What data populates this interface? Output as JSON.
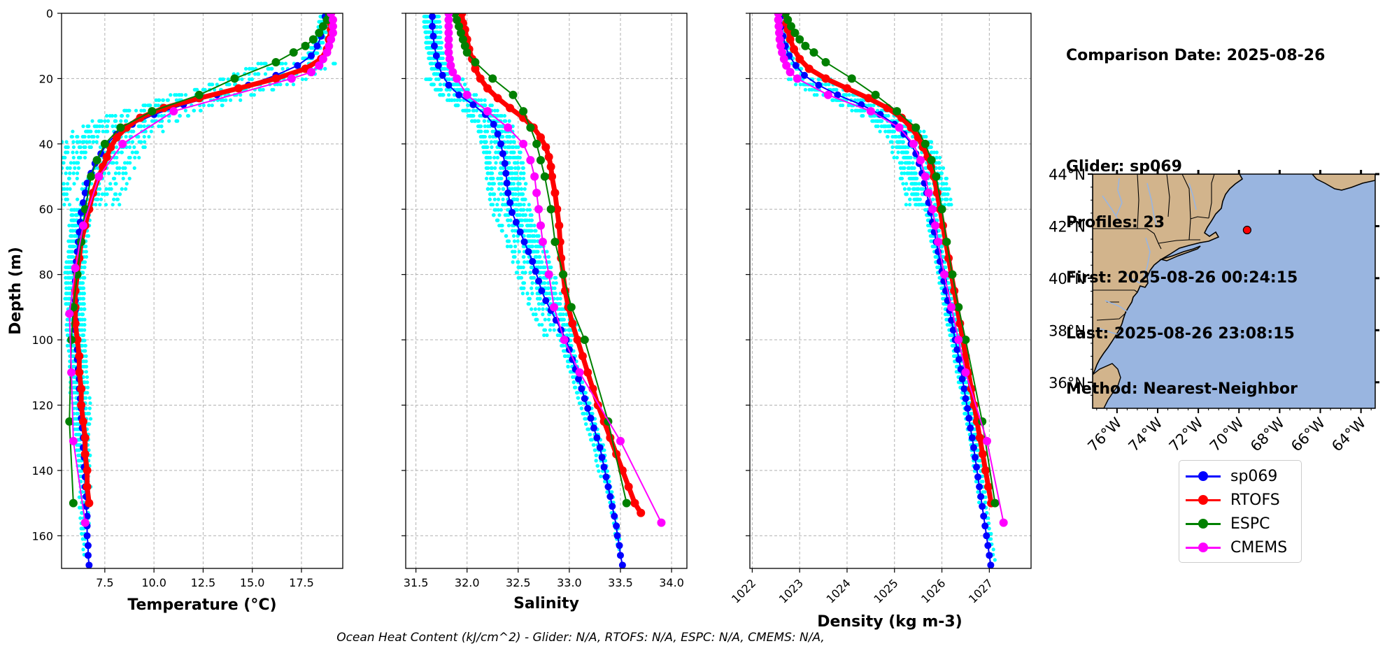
{
  "info": {
    "comparison_date": "Comparison Date: 2025-08-26",
    "glider": "Glider: sp069",
    "profiles": "Profiles: 23",
    "first": "First: 2025-08-26 00:24:15",
    "last": "Last: 2025-08-26 23:08:15",
    "method": "Method: Nearest-Neighbor"
  },
  "footer": "Ocean Heat Content (kJ/cm^2) - Glider: N/A,  RTOFS: N/A,  ESPC: N/A,  CMEMS: N/A,",
  "legend": [
    {
      "name": "sp069",
      "color": "#0000ff"
    },
    {
      "name": "RTOFS",
      "color": "#ff0000"
    },
    {
      "name": "ESPC",
      "color": "#008000"
    },
    {
      "name": "CMEMS",
      "color": "#ff00ff"
    }
  ],
  "chart_data": [
    {
      "type": "line",
      "xlabel": "Temperature (°C)",
      "ylabel": "Depth (m)",
      "xlim": [
        5.3,
        19.6
      ],
      "ylim": [
        170,
        0
      ],
      "xticks": [
        7.5,
        10.0,
        12.5,
        15.0,
        17.5
      ],
      "yticks": [
        0,
        20,
        40,
        60,
        80,
        100,
        120,
        140,
        160
      ],
      "grid": true,
      "series": [
        {
          "name": "sp069",
          "color": "#0000ff",
          "width": 2,
          "marker": 5,
          "depth": [
            1,
            4,
            7,
            10,
            13,
            16,
            19,
            22,
            25,
            28,
            31,
            34,
            37,
            40,
            43,
            46,
            49,
            52,
            55,
            58,
            61,
            64,
            67,
            70,
            73,
            76,
            79,
            82,
            85,
            88,
            91,
            94,
            97,
            100,
            103,
            106,
            109,
            112,
            115,
            118,
            121,
            124,
            127,
            130,
            133,
            136,
            139,
            142,
            145,
            148,
            151,
            154,
            157,
            160,
            163,
            166,
            169
          ],
          "values": [
            18.7,
            18.6,
            18.5,
            18.3,
            18.0,
            17.3,
            16.2,
            14.8,
            13.2,
            11.5,
            10.0,
            8.9,
            8.1,
            7.6,
            7.3,
            7.0,
            6.8,
            6.6,
            6.5,
            6.4,
            6.3,
            6.25,
            6.2,
            6.15,
            6.1,
            6.05,
            6.0,
            6.0,
            6.0,
            6.0,
            6.0,
            6.0,
            6.0,
            6.05,
            6.1,
            6.1,
            6.15,
            6.2,
            6.2,
            6.25,
            6.3,
            6.3,
            6.35,
            6.4,
            6.4,
            6.45,
            6.45,
            6.5,
            6.5,
            6.55,
            6.55,
            6.6,
            6.6,
            6.6,
            6.65,
            6.65,
            6.7
          ]
        },
        {
          "name": "RTOFS",
          "color": "#ff0000",
          "width": 7,
          "marker": 6,
          "depth": [
            0,
            3,
            5,
            8,
            11,
            14,
            17,
            20,
            23,
            26,
            29,
            32,
            35,
            38,
            41,
            44,
            47,
            50,
            55,
            60,
            65,
            70,
            75,
            80,
            85,
            90,
            95,
            100,
            105,
            110,
            115,
            120,
            125,
            130,
            135,
            140,
            145,
            150
          ],
          "values": [
            19.0,
            19.0,
            19.0,
            18.9,
            18.8,
            18.5,
            17.7,
            16.2,
            14.3,
            12.3,
            10.5,
            9.3,
            8.6,
            8.1,
            7.8,
            7.6,
            7.4,
            7.2,
            6.9,
            6.7,
            6.5,
            6.3,
            6.2,
            6.1,
            6.0,
            6.0,
            6.0,
            6.1,
            6.2,
            6.2,
            6.3,
            6.3,
            6.4,
            6.5,
            6.5,
            6.6,
            6.6,
            6.7
          ]
        },
        {
          "name": "ESPC",
          "color": "#008000",
          "width": 2,
          "marker": 6,
          "depth": [
            0,
            2,
            4,
            6,
            8,
            10,
            12,
            15,
            20,
            25,
            30,
            35,
            40,
            45,
            50,
            60,
            70,
            80,
            90,
            100,
            125,
            150
          ],
          "values": [
            18.9,
            18.8,
            18.6,
            18.4,
            18.1,
            17.7,
            17.1,
            16.2,
            14.1,
            12.3,
            9.9,
            8.3,
            7.5,
            7.1,
            6.8,
            6.5,
            6.3,
            6.1,
            5.9,
            5.8,
            5.7,
            5.9
          ]
        },
        {
          "name": "CMEMS",
          "color": "#ff00ff",
          "width": 2,
          "marker": 6,
          "depth": [
            0,
            2,
            4,
            6,
            8,
            10,
            12,
            14,
            16,
            18,
            20,
            30,
            40,
            50,
            65,
            78,
            92,
            110,
            131,
            156
          ],
          "values": [
            19.0,
            19.1,
            19.1,
            19.1,
            19.0,
            18.9,
            18.8,
            18.6,
            18.4,
            18.0,
            17.0,
            11.0,
            8.4,
            7.2,
            6.4,
            6.0,
            5.7,
            5.8,
            5.9,
            6.5
          ]
        }
      ]
    },
    {
      "type": "line",
      "xlabel": "Salinity",
      "xlim": [
        31.4,
        34.15
      ],
      "ylim": [
        170,
        0
      ],
      "xticks": [
        31.5,
        32.0,
        32.5,
        33.0,
        33.5,
        34.0
      ],
      "grid": true,
      "series": [
        {
          "name": "sp069",
          "color": "#0000ff",
          "width": 2,
          "marker": 5,
          "depth": [
            1,
            4,
            7,
            10,
            13,
            16,
            19,
            22,
            25,
            28,
            31,
            34,
            37,
            40,
            43,
            46,
            49,
            52,
            55,
            58,
            61,
            64,
            67,
            70,
            73,
            76,
            79,
            82,
            85,
            88,
            91,
            94,
            97,
            100,
            103,
            106,
            109,
            112,
            115,
            118,
            121,
            124,
            127,
            130,
            133,
            136,
            139,
            142,
            145,
            148,
            151,
            154,
            157,
            160,
            163,
            166,
            169
          ],
          "values": [
            31.66,
            31.66,
            31.67,
            31.68,
            31.7,
            31.72,
            31.76,
            31.82,
            31.92,
            32.06,
            32.18,
            32.26,
            32.3,
            32.33,
            32.35,
            32.37,
            32.38,
            32.39,
            32.4,
            32.42,
            32.44,
            32.48,
            32.52,
            32.56,
            32.6,
            32.64,
            32.67,
            32.7,
            32.73,
            32.77,
            32.82,
            32.87,
            32.92,
            32.97,
            33.0,
            33.03,
            33.06,
            33.09,
            33.12,
            33.15,
            33.18,
            33.21,
            33.24,
            33.27,
            33.3,
            33.32,
            33.34,
            33.36,
            33.38,
            33.4,
            33.42,
            33.44,
            33.46,
            33.47,
            33.49,
            33.5,
            33.52
          ]
        },
        {
          "name": "RTOFS",
          "color": "#ff0000",
          "width": 7,
          "marker": 6,
          "depth": [
            0,
            3,
            5,
            8,
            11,
            14,
            17,
            20,
            23,
            26,
            29,
            32,
            35,
            38,
            41,
            44,
            47,
            50,
            55,
            60,
            65,
            70,
            75,
            80,
            85,
            90,
            95,
            100,
            105,
            110,
            115,
            120,
            125,
            130,
            135,
            140,
            145,
            150,
            153
          ],
          "values": [
            31.95,
            31.96,
            31.98,
            32.0,
            32.02,
            32.05,
            32.08,
            32.13,
            32.2,
            32.3,
            32.42,
            32.55,
            32.65,
            32.72,
            32.77,
            32.8,
            32.82,
            32.83,
            32.86,
            32.88,
            32.9,
            32.91,
            32.92,
            32.94,
            32.96,
            32.99,
            33.03,
            33.08,
            33.13,
            33.18,
            33.23,
            33.28,
            33.34,
            33.4,
            33.46,
            33.52,
            33.58,
            33.64,
            33.7
          ]
        },
        {
          "name": "ESPC",
          "color": "#008000",
          "width": 2,
          "marker": 6,
          "depth": [
            0,
            2,
            4,
            6,
            8,
            10,
            12,
            15,
            20,
            25,
            30,
            35,
            40,
            45,
            50,
            60,
            70,
            80,
            90,
            100,
            125,
            150
          ],
          "values": [
            31.88,
            31.9,
            31.92,
            31.94,
            31.96,
            31.98,
            32.0,
            32.08,
            32.25,
            32.45,
            32.55,
            32.62,
            32.68,
            32.72,
            32.76,
            32.82,
            32.86,
            32.94,
            33.02,
            33.15,
            33.38,
            33.56
          ]
        },
        {
          "name": "CMEMS",
          "color": "#ff00ff",
          "width": 2,
          "marker": 6,
          "depth": [
            0,
            2,
            4,
            6,
            8,
            10,
            12,
            14,
            16,
            18,
            20,
            25,
            30,
            35,
            40,
            45,
            50,
            55,
            60,
            65,
            70,
            80,
            90,
            100,
            110,
            131,
            156
          ],
          "values": [
            31.82,
            31.82,
            31.82,
            31.82,
            31.82,
            31.82,
            31.82,
            31.83,
            31.84,
            31.86,
            31.9,
            32.0,
            32.2,
            32.4,
            32.55,
            32.62,
            32.66,
            32.68,
            32.7,
            32.72,
            32.74,
            32.8,
            32.85,
            32.95,
            33.1,
            33.5,
            33.9
          ]
        }
      ]
    },
    {
      "type": "line",
      "xlabel": "Density (kg m-3)",
      "xlim": [
        1021.95,
        1027.88
      ],
      "ylim": [
        170,
        0
      ],
      "xticks": [
        1022,
        1023,
        1024,
        1025,
        1026,
        1027
      ],
      "grid": true,
      "series": [
        {
          "name": "sp069",
          "color": "#0000ff",
          "width": 2,
          "marker": 5,
          "depth": [
            1,
            4,
            7,
            10,
            13,
            16,
            19,
            22,
            25,
            28,
            31,
            34,
            37,
            40,
            43,
            46,
            49,
            52,
            55,
            58,
            61,
            64,
            67,
            70,
            73,
            76,
            79,
            82,
            85,
            88,
            91,
            94,
            97,
            100,
            103,
            106,
            109,
            112,
            115,
            118,
            121,
            124,
            127,
            130,
            133,
            136,
            139,
            142,
            145,
            148,
            151,
            154,
            157,
            160,
            163,
            166,
            169
          ],
          "values": [
            1022.6,
            1022.62,
            1022.65,
            1022.7,
            1022.78,
            1022.92,
            1023.1,
            1023.4,
            1023.8,
            1024.3,
            1024.7,
            1025.0,
            1025.2,
            1025.35,
            1025.45,
            1025.52,
            1025.58,
            1025.63,
            1025.68,
            1025.72,
            1025.76,
            1025.8,
            1025.84,
            1025.88,
            1025.92,
            1025.96,
            1026.0,
            1026.04,
            1026.08,
            1026.12,
            1026.16,
            1026.2,
            1026.24,
            1026.28,
            1026.32,
            1026.36,
            1026.4,
            1026.43,
            1026.47,
            1026.5,
            1026.54,
            1026.57,
            1026.6,
            1026.64,
            1026.67,
            1026.7,
            1026.73,
            1026.76,
            1026.79,
            1026.82,
            1026.85,
            1026.88,
            1026.91,
            1026.94,
            1026.97,
            1027.0,
            1027.03
          ]
        },
        {
          "name": "RTOFS",
          "color": "#ff0000",
          "width": 7,
          "marker": 6,
          "depth": [
            0,
            3,
            5,
            8,
            11,
            14,
            17,
            20,
            23,
            26,
            29,
            32,
            35,
            38,
            41,
            44,
            47,
            50,
            55,
            60,
            65,
            70,
            75,
            80,
            85,
            90,
            95,
            100,
            105,
            110,
            115,
            120,
            125,
            130,
            135,
            140,
            145,
            150
          ],
          "values": [
            1022.7,
            1022.72,
            1022.75,
            1022.8,
            1022.88,
            1023.0,
            1023.2,
            1023.55,
            1024.0,
            1024.45,
            1024.85,
            1025.15,
            1025.35,
            1025.5,
            1025.6,
            1025.7,
            1025.77,
            1025.83,
            1025.9,
            1025.96,
            1026.02,
            1026.08,
            1026.14,
            1026.2,
            1026.26,
            1026.32,
            1026.38,
            1026.44,
            1026.5,
            1026.56,
            1026.62,
            1026.68,
            1026.74,
            1026.8,
            1026.86,
            1026.92,
            1026.98,
            1027.04
          ]
        },
        {
          "name": "ESPC",
          "color": "#008000",
          "width": 2,
          "marker": 6,
          "depth": [
            0,
            2,
            4,
            6,
            8,
            10,
            12,
            15,
            20,
            25,
            30,
            35,
            40,
            45,
            50,
            60,
            70,
            80,
            90,
            100,
            125,
            150
          ],
          "values": [
            1022.7,
            1022.75,
            1022.82,
            1022.9,
            1023.0,
            1023.12,
            1023.3,
            1023.55,
            1024.1,
            1024.6,
            1025.05,
            1025.45,
            1025.65,
            1025.78,
            1025.88,
            1026.0,
            1026.1,
            1026.22,
            1026.35,
            1026.5,
            1026.85,
            1027.12
          ]
        },
        {
          "name": "CMEMS",
          "color": "#ff00ff",
          "width": 2,
          "marker": 6,
          "depth": [
            0,
            2,
            4,
            6,
            8,
            10,
            12,
            14,
            16,
            18,
            20,
            25,
            30,
            35,
            40,
            45,
            50,
            55,
            60,
            65,
            70,
            80,
            90,
            100,
            110,
            131,
            156
          ],
          "values": [
            1022.55,
            1022.55,
            1022.56,
            1022.57,
            1022.58,
            1022.6,
            1022.63,
            1022.67,
            1022.72,
            1022.8,
            1022.95,
            1023.6,
            1024.5,
            1025.1,
            1025.4,
            1025.55,
            1025.65,
            1025.72,
            1025.8,
            1025.86,
            1025.92,
            1026.05,
            1026.2,
            1026.35,
            1026.5,
            1026.95,
            1027.3
          ]
        }
      ]
    },
    {
      "type": "map",
      "lon_range": [
        -77.2,
        -63.3
      ],
      "lat_range": [
        35.0,
        44.0
      ],
      "xticks": [
        "76°W",
        "74°W",
        "72°W",
        "70°W",
        "68°W",
        "66°W",
        "64°W"
      ],
      "yticks": [
        "36°N",
        "38°N",
        "40°N",
        "42°N",
        "44°N"
      ],
      "land_color": "#d2b48c",
      "ocean_color": "#99b5e0",
      "glider_position": {
        "lon": -69.6,
        "lat": 41.85,
        "color": "#ff0000"
      }
    }
  ]
}
